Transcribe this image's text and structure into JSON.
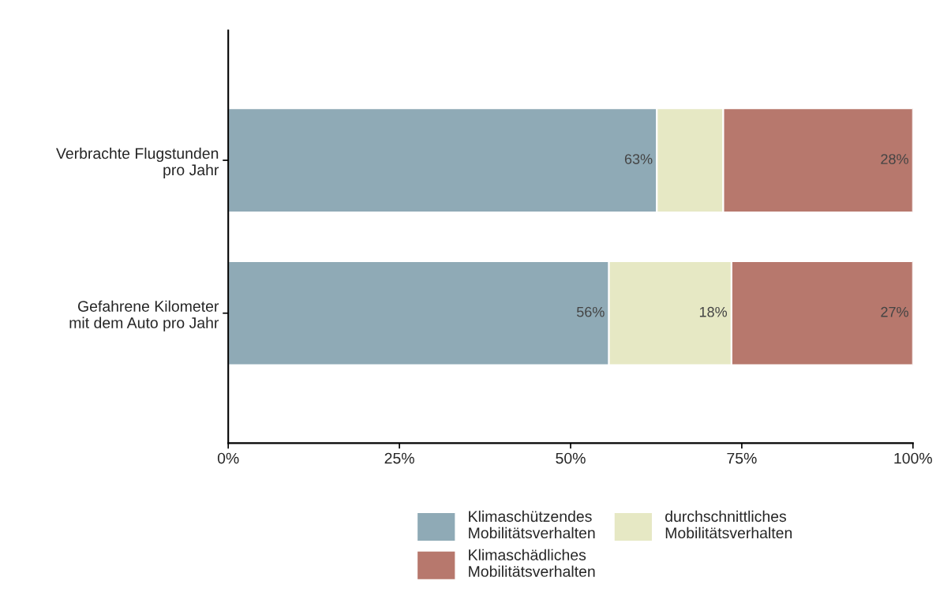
{
  "chart_data": {
    "type": "bar",
    "orientation": "horizontal",
    "stacked": true,
    "categories": [
      "Verbrachte Flugstunden\npro Jahr",
      "Gefahrene Kilometer\nmit dem Auto pro Jahr"
    ],
    "series": [
      {
        "name": "Klimaschützendes\nMobilitätsverhalten",
        "color": "#8faab6",
        "values": [
          62.6,
          55.6
        ],
        "value_labels": [
          "63%",
          "56%"
        ]
      },
      {
        "name": "durchschnittliches\nMobilitätsverhalten",
        "color": "#e6e8c4",
        "values": [
          9.7,
          17.9
        ],
        "value_labels": [
          null,
          "18%"
        ]
      },
      {
        "name": "Klimaschädliches\nMobilitätsverhalten",
        "color": "#b7786d",
        "values": [
          27.7,
          26.5
        ],
        "value_labels": [
          "28%",
          "27%"
        ]
      }
    ],
    "xlim": [
      0,
      100
    ],
    "xticks": [
      {
        "value": 0,
        "label": "0%"
      },
      {
        "value": 25,
        "label": "25%"
      },
      {
        "value": 50,
        "label": "50%"
      },
      {
        "value": 75,
        "label": "75%"
      },
      {
        "value": 100,
        "label": "100%"
      }
    ],
    "grid": false,
    "legend": "bottom"
  }
}
